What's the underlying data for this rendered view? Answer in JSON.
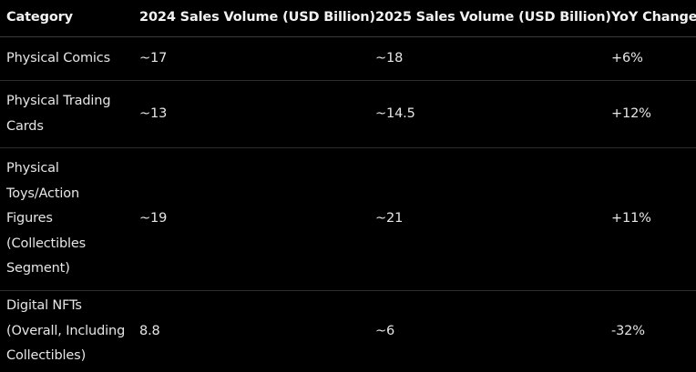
{
  "table": {
    "headers": [
      "Category",
      "2024 Sales Volume (USD Billion)",
      "2025 Sales Volume (USD Billion)",
      "YoY Change"
    ],
    "rows": [
      {
        "category": "Physical Comics",
        "sales_2024": "~17",
        "sales_2025": "~18",
        "yoy_change": "+6%"
      },
      {
        "category": "Physical Trading Cards",
        "sales_2024": "~13",
        "sales_2025": "~14.5",
        "yoy_change": "+12%"
      },
      {
        "category": "Physical Toys/Action Figures (Collectibles Segment)",
        "sales_2024": "~19",
        "sales_2025": "~21",
        "yoy_change": "+11%"
      },
      {
        "category": "Digital NFTs (Overall, Including Collectibles)",
        "sales_2024": "8.8",
        "sales_2025": "~6",
        "yoy_change": "-32%"
      }
    ]
  }
}
